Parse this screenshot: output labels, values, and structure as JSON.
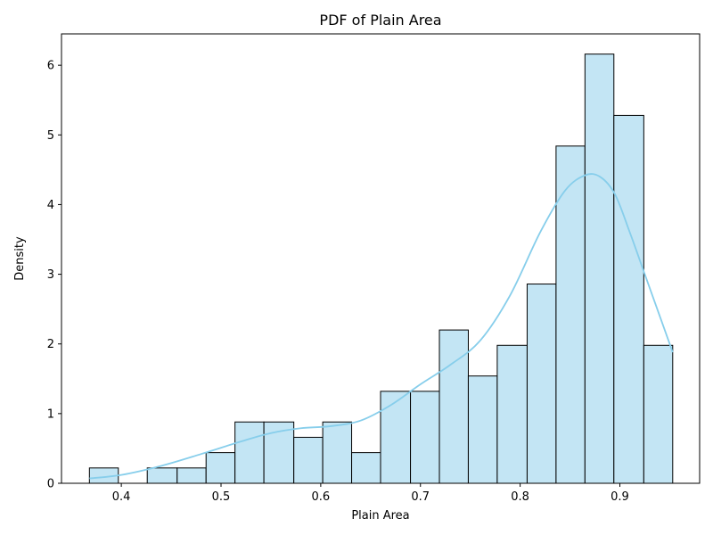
{
  "chart_data": {
    "type": "bar",
    "title": "PDF of Plain Area",
    "xlabel": "Plain Area",
    "ylabel": "Density",
    "xlim": [
      0.34,
      0.98
    ],
    "ylim": [
      0,
      6.45
    ],
    "x_ticks": [
      0.4,
      0.5,
      0.6,
      0.7,
      0.8,
      0.9
    ],
    "y_ticks": [
      0,
      1,
      2,
      3,
      4,
      5,
      6
    ],
    "bin_edges": [
      0.368,
      0.397,
      0.426,
      0.456,
      0.485,
      0.514,
      0.543,
      0.573,
      0.602,
      0.631,
      0.66,
      0.69,
      0.719,
      0.748,
      0.777,
      0.807,
      0.836,
      0.865,
      0.894,
      0.924,
      0.953
    ],
    "values": [
      0.22,
      0.0,
      0.22,
      0.22,
      0.44,
      0.88,
      0.88,
      0.66,
      0.88,
      0.44,
      1.32,
      1.32,
      2.2,
      1.54,
      1.98,
      2.86,
      4.84,
      6.16,
      5.28,
      1.98
    ],
    "bar_color": "#c3e5f4",
    "bar_edge_color": "#000000",
    "kde": {
      "color": "#87ceeb",
      "x": [
        0.368,
        0.4,
        0.44,
        0.48,
        0.52,
        0.55,
        0.58,
        0.61,
        0.64,
        0.67,
        0.7,
        0.73,
        0.76,
        0.79,
        0.82,
        0.845,
        0.865,
        0.88,
        0.895,
        0.91,
        0.925,
        0.94,
        0.953
      ],
      "y": [
        0.07,
        0.12,
        0.25,
        0.42,
        0.6,
        0.72,
        0.79,
        0.82,
        0.9,
        1.12,
        1.42,
        1.7,
        2.05,
        2.7,
        3.6,
        4.2,
        4.42,
        4.4,
        4.15,
        3.6,
        3.0,
        2.4,
        1.88
      ]
    },
    "grid": false,
    "legend": "none"
  }
}
